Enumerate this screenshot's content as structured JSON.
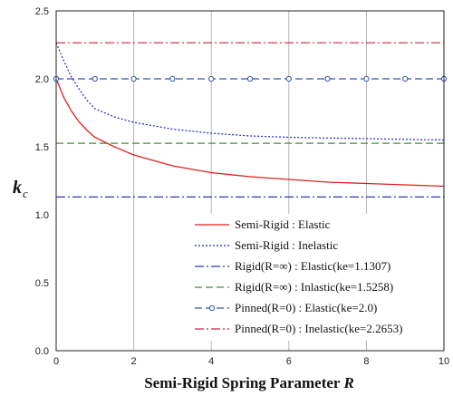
{
  "chart_data": {
    "type": "line",
    "title": "",
    "xlabel_main": "Semi-Rigid Spring Parameter",
    "xlabel_var": "R",
    "ylabel_main": "k",
    "ylabel_sub": "c",
    "xlim": [
      0,
      10
    ],
    "ylim": [
      0,
      2.5
    ],
    "x_ticks": [
      "0",
      "2",
      "4",
      "6",
      "8",
      "10"
    ],
    "y_ticks": [
      "0.0",
      "0.5",
      "1.0",
      "1.5",
      "2.0",
      "2.5"
    ],
    "grid": "vertical",
    "legend_position": "bottom-right",
    "series": [
      {
        "name": "Semi-Rigid : Elastic",
        "color": "#e02020",
        "dash": "solid",
        "x": [
          0,
          0.2,
          0.4,
          0.6,
          0.8,
          1.0,
          1.5,
          2,
          3,
          4,
          5,
          6,
          7,
          8,
          9,
          10
        ],
        "y": [
          2.0,
          1.86,
          1.76,
          1.68,
          1.62,
          1.57,
          1.5,
          1.44,
          1.36,
          1.31,
          1.28,
          1.26,
          1.24,
          1.23,
          1.22,
          1.21
        ]
      },
      {
        "name": "Semi-Rigid : Inelastic",
        "color": "#2222cc",
        "dash": "dotted",
        "x": [
          0,
          0.2,
          0.4,
          0.6,
          0.8,
          1.0,
          1.5,
          2,
          3,
          4,
          5,
          6,
          7,
          8,
          9,
          10
        ],
        "y": [
          2.265,
          2.13,
          2.01,
          1.92,
          1.84,
          1.78,
          1.72,
          1.68,
          1.63,
          1.6,
          1.58,
          1.57,
          1.565,
          1.56,
          1.555,
          1.55
        ]
      },
      {
        "name": "Rigid(R=∞) : Elastic(ke=1.1307)",
        "color": "#3333bb",
        "dash": "dashdot",
        "x": [
          0,
          10
        ],
        "y": [
          1.1307,
          1.1307
        ]
      },
      {
        "name": "Rigid(R=∞) : Inlastic(ke=1.5258)",
        "color": "#4a8a3a",
        "dash": "dashed",
        "x": [
          0,
          10
        ],
        "y": [
          1.5258,
          1.5258
        ]
      },
      {
        "name": "Pinned(R=0) : Elastic(ke=2.0)",
        "color": "#3355aa",
        "dash": "dashed",
        "marker": "circle",
        "x": [
          0,
          1,
          2,
          3,
          4,
          5,
          6,
          7,
          8,
          9,
          10
        ],
        "y": [
          2.0,
          2.0,
          2.0,
          2.0,
          2.0,
          2.0,
          2.0,
          2.0,
          2.0,
          2.0,
          2.0
        ]
      },
      {
        "name": "Pinned(R=0) : Inelastic(ke=2.2653)",
        "color": "#cc2244",
        "dash": "dashdot",
        "x": [
          0,
          10
        ],
        "y": [
          2.2653,
          2.2653
        ]
      }
    ]
  }
}
